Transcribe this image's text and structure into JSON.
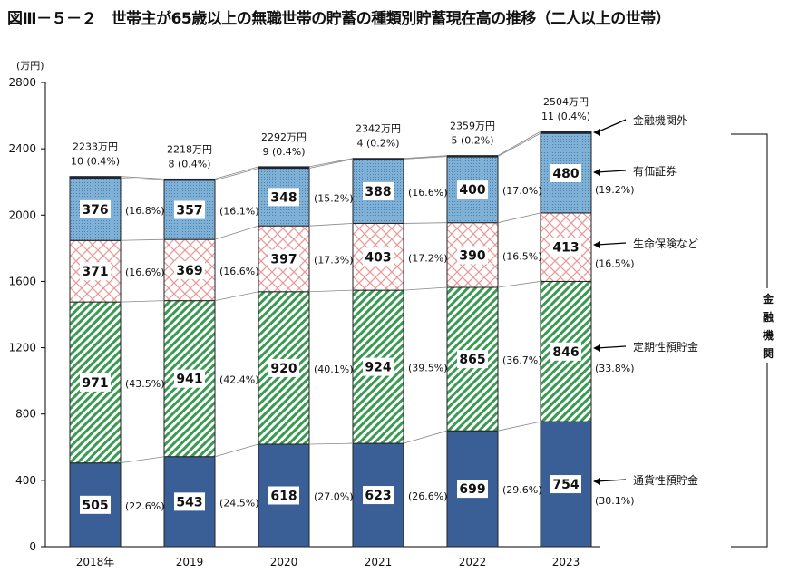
{
  "title": "図Ⅲ－５－２　世帯主が65歳以上の無職世帯の貯蓄の種類別貯蓄現在高の推移（二人以上の世帯）",
  "chart_data": {
    "type": "bar",
    "stacked": true,
    "ylabel": "(万円)",
    "ylim": [
      0,
      2800
    ],
    "yticks": [
      0,
      400,
      800,
      1200,
      1600,
      2000,
      2400,
      2800
    ],
    "grid": false,
    "categories": [
      "2018年",
      "2019",
      "2020",
      "2021",
      "2022",
      "2023"
    ],
    "series": [
      {
        "name": "通貨性預貯金",
        "color": "#3a5f96",
        "pattern": "solid",
        "values": [
          505,
          543,
          618,
          623,
          699,
          754
        ],
        "percent": [
          "22.6%",
          "24.5%",
          "27.0%",
          "26.6%",
          "29.6%",
          "30.1%"
        ]
      },
      {
        "name": "定期性預貯金",
        "color": "#3a9a52",
        "pattern": "diagonal",
        "values": [
          971,
          941,
          920,
          924,
          865,
          846
        ],
        "percent": [
          "43.5%",
          "42.4%",
          "40.1%",
          "39.5%",
          "36.7%",
          "33.8%"
        ]
      },
      {
        "name": "生命保険など",
        "color": "#e89a9a",
        "pattern": "crosshatch",
        "values": [
          371,
          369,
          397,
          403,
          390,
          413
        ],
        "percent": [
          "16.6%",
          "16.6%",
          "17.3%",
          "17.2%",
          "16.5%",
          "16.5%"
        ]
      },
      {
        "name": "有価証券",
        "color": "#7fb0d6",
        "pattern": "dots",
        "values": [
          376,
          357,
          348,
          388,
          400,
          480
        ],
        "percent": [
          "16.8%",
          "16.1%",
          "15.2%",
          "16.6%",
          "17.0%",
          "19.2%"
        ]
      },
      {
        "name": "金融機関外",
        "color": "#1a2b4a",
        "pattern": "solid",
        "values": [
          10,
          8,
          9,
          4,
          5,
          11
        ],
        "percent": [
          "0.4%",
          "0.4%",
          "0.4%",
          "0.2%",
          "0.2%",
          "0.4%"
        ]
      }
    ],
    "totals": [
      "2233万円",
      "2218万円",
      "2292万円",
      "2342万円",
      "2359万円",
      "2504万円"
    ],
    "bracket_label": "金融機関"
  }
}
